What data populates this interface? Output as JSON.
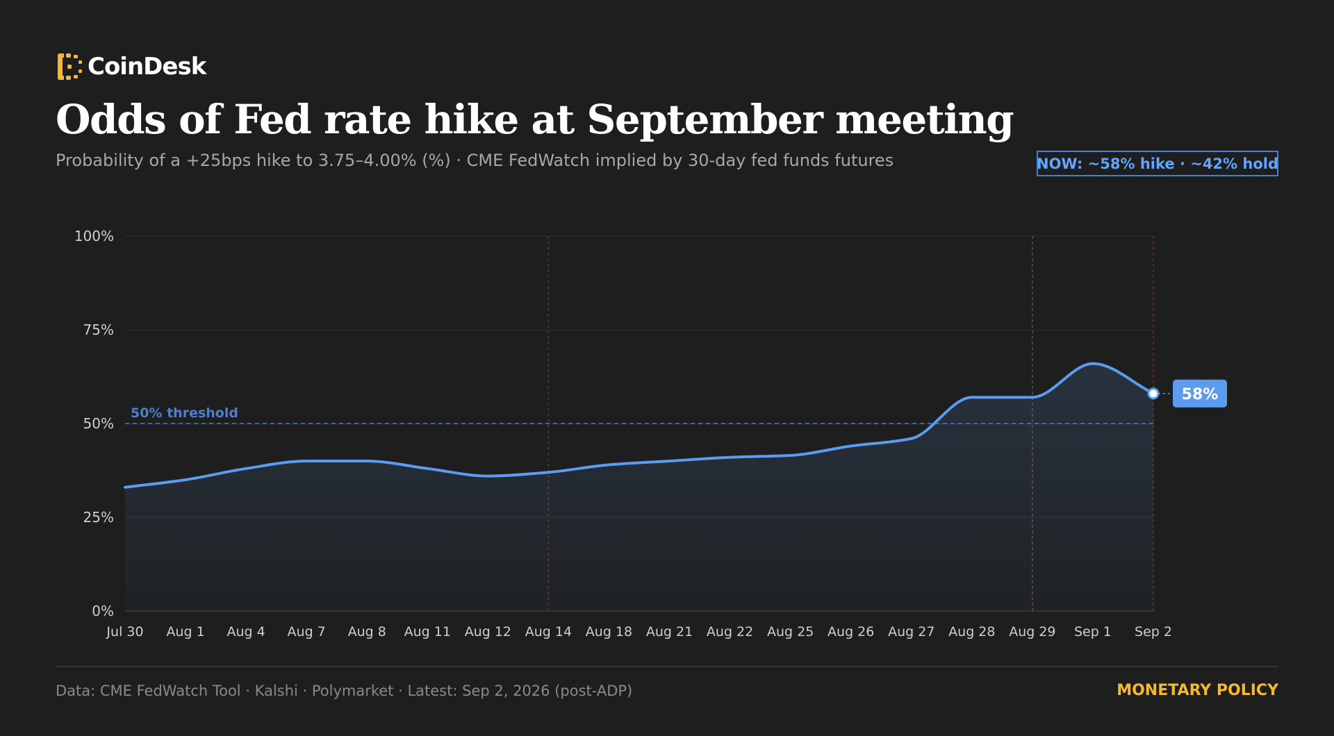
{
  "brand": {
    "name": "CoinDesk",
    "logo_icon": "coindesk-logo-icon",
    "logo_color": "#f5b82e"
  },
  "header": {
    "title": "Odds of Fed rate hike at September meeting",
    "subtitle": "Probability of a +25bps hike to 3.75–4.00% (%) · CME FedWatch implied by 30-day fed funds futures",
    "badge": "NOW: ~58% hike · ~42% hold"
  },
  "chart_data": {
    "type": "area",
    "x": [
      "Jul 30",
      "Aug 1",
      "Aug 4",
      "Aug 7",
      "Aug 8",
      "Aug 11",
      "Aug 12",
      "Aug 14",
      "Aug 18",
      "Aug 21",
      "Aug 22",
      "Aug 25",
      "Aug 26",
      "Aug 27",
      "Aug 28",
      "Aug 29",
      "Sep 1",
      "Sep 2"
    ],
    "series": [
      {
        "values": [
          33,
          35,
          38,
          40,
          40,
          38,
          36,
          37,
          39,
          40,
          41,
          41.5,
          44,
          46,
          57,
          57,
          66,
          58
        ],
        "color": "#5b9cf0"
      }
    ],
    "ylim": [
      0,
      100
    ],
    "yticks": [
      0,
      25,
      50,
      75,
      100
    ],
    "ytick_labels": [
      "0%",
      "25%",
      "50%",
      "75%",
      "100%"
    ],
    "threshold": {
      "value": 50,
      "label": "50% threshold",
      "color": "#4b7fd1"
    },
    "event_markers": [
      {
        "x": "Aug 14",
        "color": "#6e2f30"
      },
      {
        "x": "Aug 29",
        "color": "#6b5422"
      },
      {
        "x": "Sep 2",
        "color": "#6e2f30"
      }
    ],
    "end_label": "58%",
    "grid": true,
    "legend": "none",
    "xlabel": "",
    "ylabel": ""
  },
  "footer": {
    "source": "Data: CME FedWatch Tool · Kalshi · Polymarket · Latest: Sep 2, 2026 (post-ADP)",
    "tag": "MONETARY POLICY",
    "tag_color": "#f5b82e"
  }
}
